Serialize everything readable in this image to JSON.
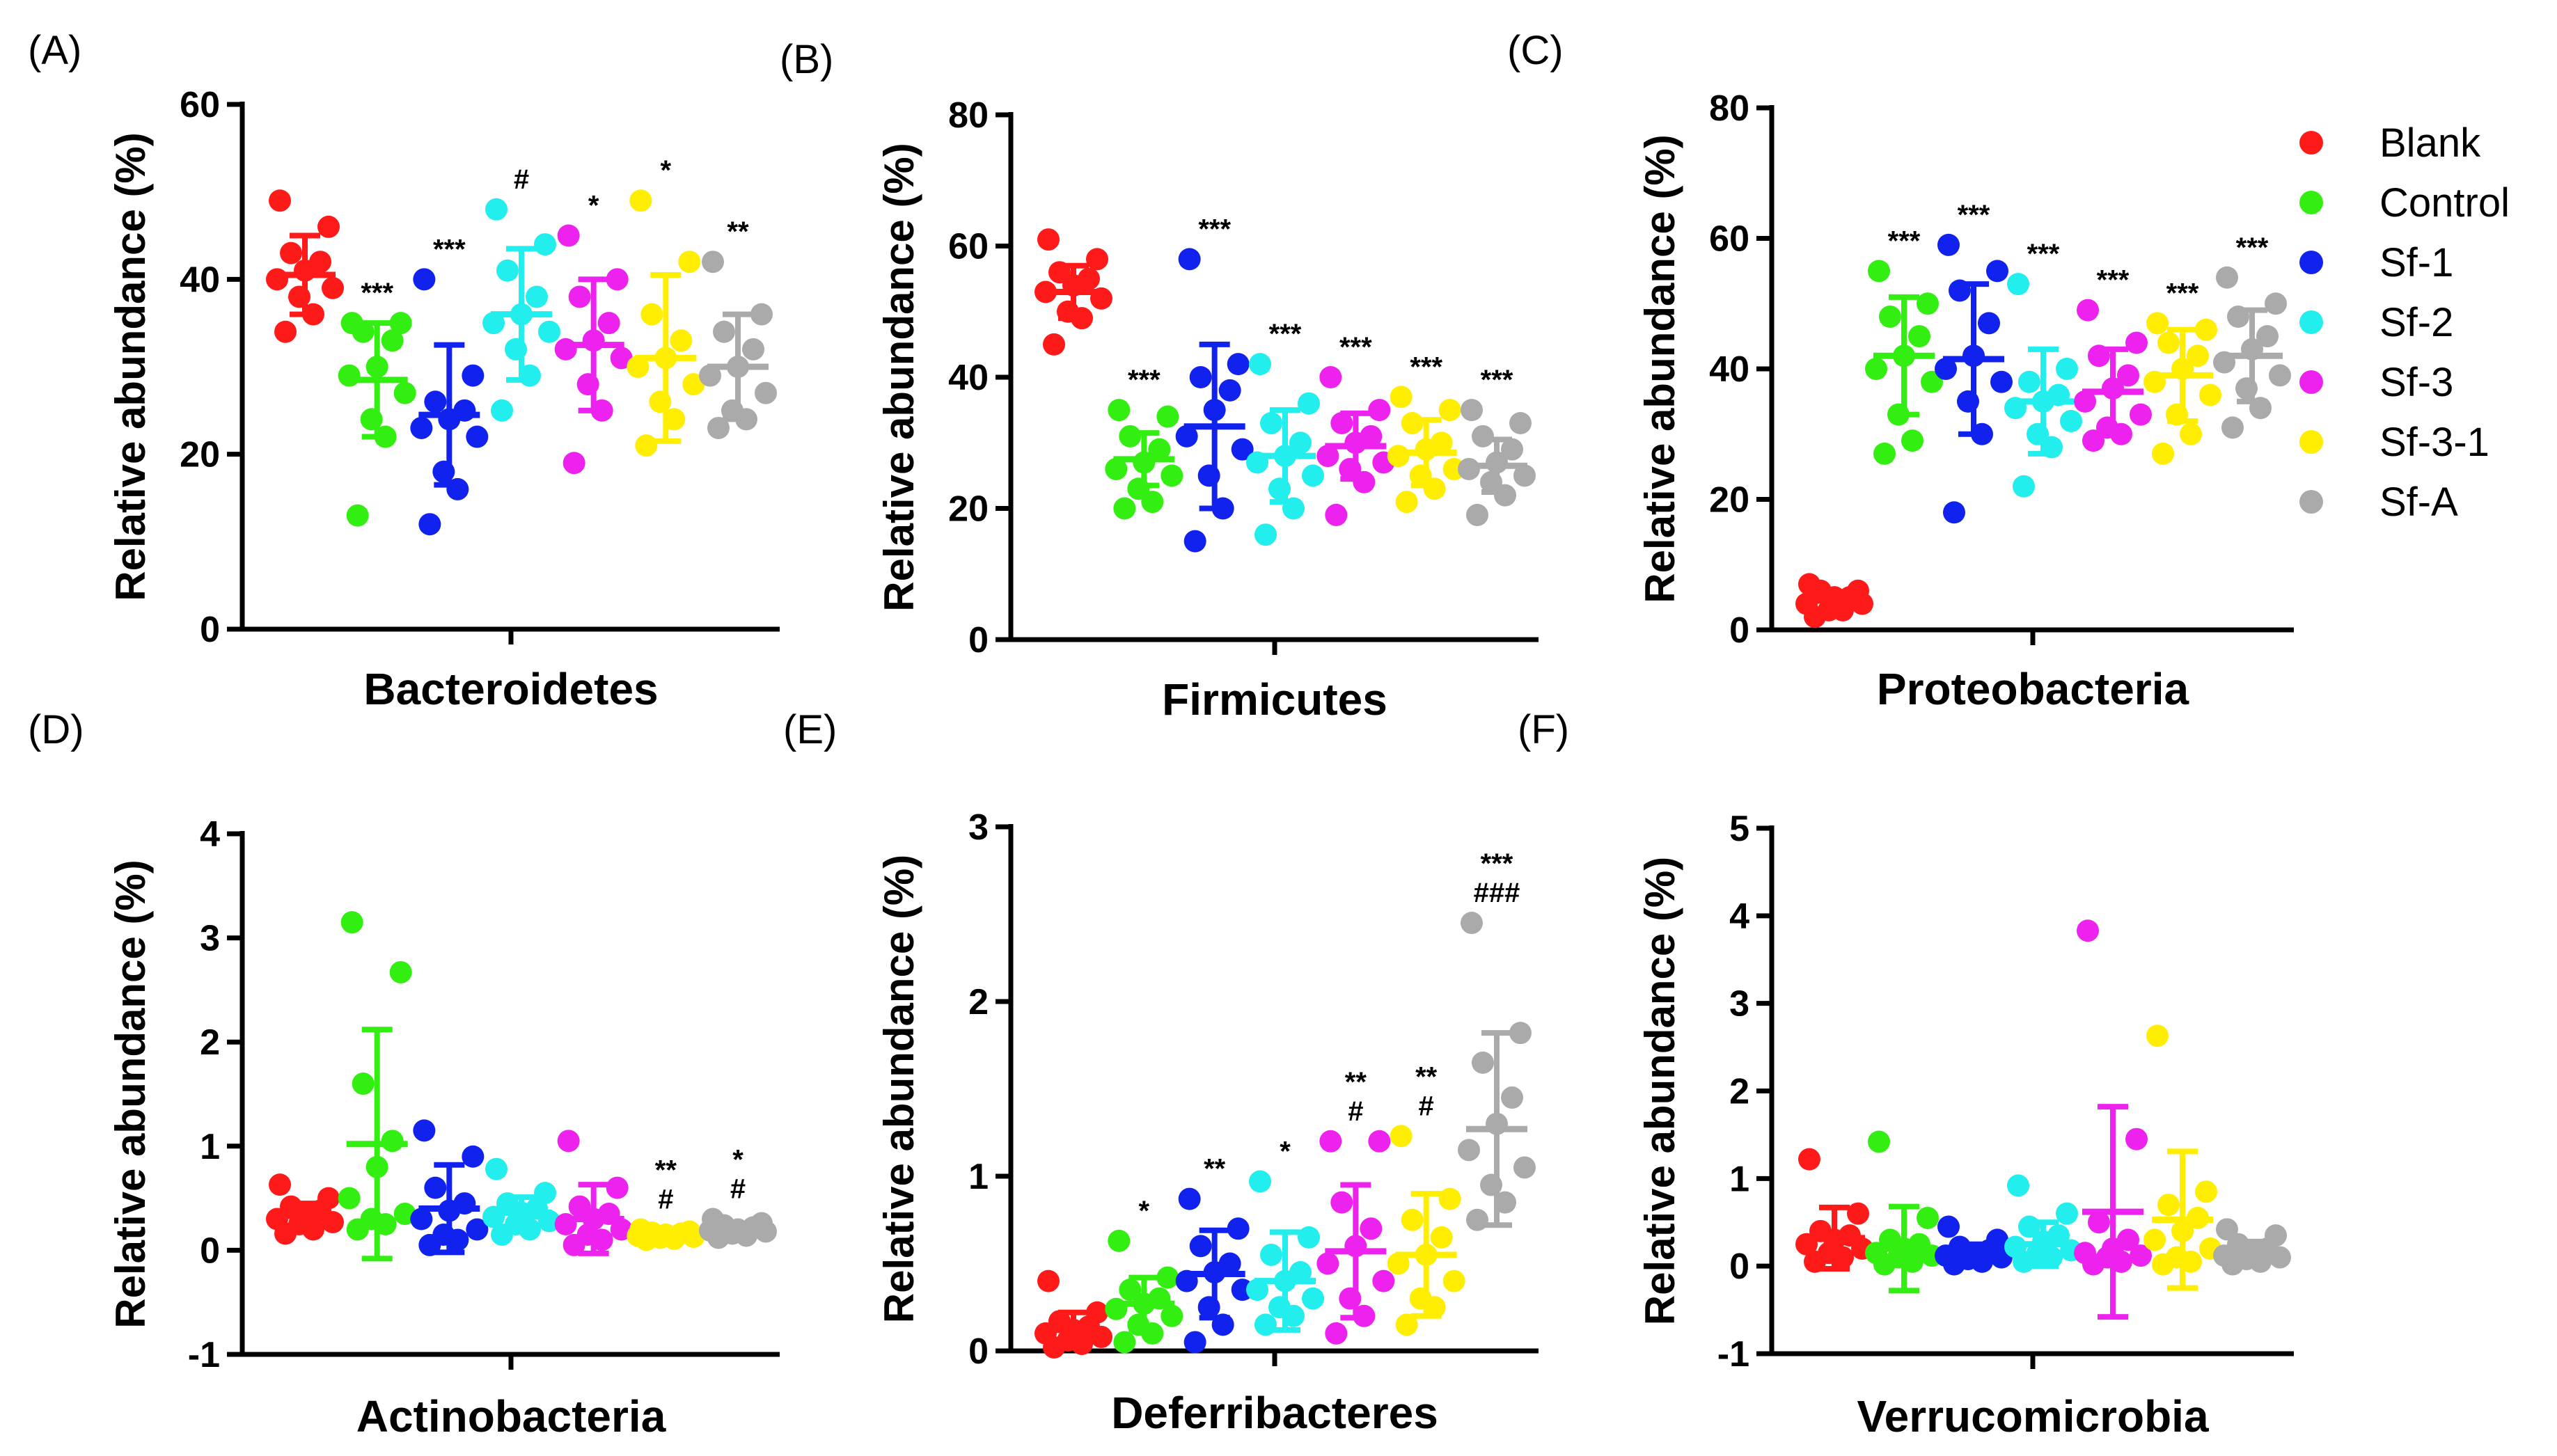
{
  "figure": {
    "legend": [
      {
        "name": "Blank",
        "color": "#ff1a1a"
      },
      {
        "name": "Control",
        "color": "#33ee11"
      },
      {
        "name": "Sf-1",
        "color": "#1122ee"
      },
      {
        "name": "Sf-2",
        "color": "#22eeee"
      },
      {
        "name": "Sf-3",
        "color": "#ee22ee"
      },
      {
        "name": "Sf-3-1",
        "color": "#ffee00"
      },
      {
        "name": "Sf-A",
        "color": "#aaaaaa"
      }
    ]
  },
  "chart_data": [
    {
      "panel": "(A)",
      "type": "scatter",
      "title": "",
      "xlabel": "Bacteroidetes",
      "ylabel": "Relative abundance (%)",
      "ylim": [
        0,
        60
      ],
      "yticks": [
        "0",
        "20",
        "40",
        "60"
      ],
      "grid": false,
      "groups": [
        "Blank",
        "Control",
        "Sf-1",
        "Sf-2",
        "Sf-3",
        "Sf-3-1",
        "Sf-A"
      ],
      "series": [
        {
          "name": "Blank",
          "mean": 40.5,
          "sd": 4.5,
          "points": [
            49,
            46,
            43,
            42,
            41,
            40,
            39,
            38,
            36,
            34
          ]
        },
        {
          "name": "Control",
          "mean": 28.5,
          "sd": 6.5,
          "points": [
            35,
            35,
            34,
            33,
            30,
            29,
            27,
            24,
            22,
            13
          ]
        },
        {
          "name": "Sf-1",
          "mean": 24.5,
          "sd": 8,
          "points": [
            40,
            29,
            26,
            25,
            24,
            23,
            22,
            18,
            16,
            12
          ]
        },
        {
          "name": "Sf-2",
          "mean": 36,
          "sd": 7.5,
          "points": [
            48,
            44,
            41,
            38,
            36,
            35,
            34,
            32,
            29,
            25
          ]
        },
        {
          "name": "Sf-3",
          "mean": 32.5,
          "sd": 7.5,
          "points": [
            45,
            40,
            38,
            35,
            33,
            32,
            31,
            28,
            25,
            19
          ]
        },
        {
          "name": "Sf-3-1",
          "mean": 31,
          "sd": 9.5,
          "points": [
            49,
            42,
            36,
            33,
            31,
            30,
            28,
            26,
            24,
            21
          ]
        },
        {
          "name": "Sf-A",
          "mean": 30,
          "sd": 6,
          "points": [
            42,
            36,
            34,
            32,
            30,
            29,
            27,
            25,
            24,
            23
          ]
        }
      ],
      "annotations": [
        [
          "***"
        ],
        [
          "***"
        ],
        [
          "#"
        ],
        [
          "*"
        ],
        [
          "*"
        ],
        [
          "**"
        ]
      ]
    },
    {
      "panel": "(B)",
      "type": "scatter",
      "title": "",
      "xlabel": "Firmicutes",
      "ylabel": "Relative abundance (%)",
      "ylim": [
        0,
        80
      ],
      "yticks": [
        "0",
        "20",
        "40",
        "60",
        "80"
      ],
      "grid": false,
      "groups": [
        "Blank",
        "Control",
        "Sf-1",
        "Sf-2",
        "Sf-3",
        "Sf-3-1",
        "Sf-A"
      ],
      "series": [
        {
          "name": "Blank",
          "mean": 53,
          "sd": 4,
          "points": [
            61,
            58,
            56,
            55,
            54,
            53,
            52,
            50,
            49,
            45
          ]
        },
        {
          "name": "Control",
          "mean": 27.5,
          "sd": 4,
          "points": [
            35,
            34,
            31,
            29,
            27,
            26,
            25,
            23,
            21,
            20
          ]
        },
        {
          "name": "Sf-1",
          "mean": 32.5,
          "sd": 12.5,
          "points": [
            58,
            42,
            40,
            38,
            35,
            31,
            29,
            25,
            20,
            15
          ]
        },
        {
          "name": "Sf-2",
          "mean": 28,
          "sd": 7,
          "points": [
            42,
            36,
            33,
            30,
            28,
            27,
            25,
            23,
            20,
            16
          ]
        },
        {
          "name": "Sf-3",
          "mean": 29.5,
          "sd": 5,
          "points": [
            40,
            35,
            33,
            31,
            30,
            28,
            27,
            26,
            24,
            19
          ]
        },
        {
          "name": "Sf-3-1",
          "mean": 28.5,
          "sd": 5,
          "points": [
            37,
            35,
            33,
            30,
            29,
            28,
            26,
            25,
            23,
            21
          ]
        },
        {
          "name": "Sf-A",
          "mean": 26.5,
          "sd": 4,
          "points": [
            35,
            33,
            31,
            29,
            27,
            26,
            25,
            24,
            22,
            19
          ]
        }
      ],
      "annotations": [
        [
          "***"
        ],
        [
          "***"
        ],
        [
          "***"
        ],
        [
          "***"
        ],
        [
          "***"
        ],
        [
          "***"
        ]
      ]
    },
    {
      "panel": "(C)",
      "type": "scatter",
      "title": "",
      "xlabel": "Proteobacteria",
      "ylabel": "Relative abundance (%)",
      "ylim": [
        0,
        80
      ],
      "yticks": [
        "0",
        "20",
        "40",
        "60",
        "80"
      ],
      "grid": false,
      "groups": [
        "Blank",
        "Control",
        "Sf-1",
        "Sf-2",
        "Sf-3",
        "Sf-3-1",
        "Sf-A"
      ],
      "series": [
        {
          "name": "Blank",
          "mean": 4.5,
          "sd": 1.2,
          "points": [
            7,
            6,
            6,
            5,
            5,
            4,
            4,
            3,
            3,
            2
          ]
        },
        {
          "name": "Control",
          "mean": 42,
          "sd": 9,
          "points": [
            55,
            50,
            48,
            45,
            42,
            40,
            38,
            33,
            29,
            27
          ]
        },
        {
          "name": "Sf-1",
          "mean": 41.5,
          "sd": 11.5,
          "points": [
            59,
            55,
            52,
            47,
            42,
            40,
            38,
            35,
            30,
            18
          ]
        },
        {
          "name": "Sf-2",
          "mean": 35,
          "sd": 8,
          "points": [
            53,
            40,
            38,
            36,
            35,
            34,
            32,
            30,
            28,
            22
          ]
        },
        {
          "name": "Sf-3",
          "mean": 36.5,
          "sd": 6.5,
          "points": [
            49,
            44,
            42,
            39,
            37,
            35,
            33,
            31,
            30,
            29
          ]
        },
        {
          "name": "Sf-3-1",
          "mean": 39,
          "sd": 7,
          "points": [
            47,
            46,
            44,
            42,
            40,
            38,
            36,
            33,
            30,
            27
          ]
        },
        {
          "name": "Sf-A",
          "mean": 42,
          "sd": 7,
          "points": [
            54,
            50,
            48,
            45,
            43,
            41,
            39,
            37,
            34,
            31
          ]
        }
      ],
      "annotations": [
        [
          "***"
        ],
        [
          "***"
        ],
        [
          "***"
        ],
        [
          "***"
        ],
        [
          "***"
        ],
        [
          "***"
        ]
      ]
    },
    {
      "panel": "(D)",
      "type": "scatter",
      "title": "",
      "xlabel": "Actinobacteria",
      "ylabel": "Relative abundance (%)",
      "ylim": [
        -1,
        4
      ],
      "yticks": [
        "-1",
        "0",
        "1",
        "2",
        "3",
        "4"
      ],
      "grid": false,
      "groups": [
        "Blank",
        "Control",
        "Sf-1",
        "Sf-2",
        "Sf-3",
        "Sf-3-1",
        "Sf-A"
      ],
      "series": [
        {
          "name": "Blank",
          "mean": 0.33,
          "sd": 0.12,
          "points": [
            0.63,
            0.5,
            0.42,
            0.38,
            0.33,
            0.3,
            0.27,
            0.25,
            0.2,
            0.16
          ]
        },
        {
          "name": "Control",
          "mean": 1.02,
          "sd": 1.1,
          "points": [
            3.15,
            2.67,
            1.6,
            1.05,
            0.8,
            0.5,
            0.35,
            0.3,
            0.25,
            0.2
          ]
        },
        {
          "name": "Sf-1",
          "mean": 0.4,
          "sd": 0.42,
          "points": [
            1.15,
            0.9,
            0.6,
            0.45,
            0.38,
            0.3,
            0.2,
            0.15,
            0.1,
            0.05
          ]
        },
        {
          "name": "Sf-2",
          "mean": 0.36,
          "sd": 0.15,
          "points": [
            0.78,
            0.55,
            0.45,
            0.4,
            0.36,
            0.32,
            0.28,
            0.25,
            0.2,
            0.15
          ]
        },
        {
          "name": "Sf-3",
          "mean": 0.3,
          "sd": 0.33,
          "points": [
            1.05,
            0.6,
            0.42,
            0.35,
            0.3,
            0.25,
            0.2,
            0.15,
            0.1,
            0.05
          ]
        },
        {
          "name": "Sf-3-1",
          "mean": 0.15,
          "sd": 0.04,
          "points": [
            0.2,
            0.18,
            0.17,
            0.16,
            0.15,
            0.14,
            0.13,
            0.12,
            0.11,
            0.1
          ]
        },
        {
          "name": "Sf-A",
          "mean": 0.2,
          "sd": 0.05,
          "points": [
            0.3,
            0.26,
            0.24,
            0.22,
            0.2,
            0.19,
            0.18,
            0.16,
            0.14,
            0.12
          ]
        }
      ],
      "annotations": [
        [],
        [],
        [],
        [],
        [
          "**",
          "#"
        ],
        [
          "*",
          "#"
        ]
      ]
    },
    {
      "panel": "(E)",
      "type": "scatter",
      "title": "",
      "xlabel": "Deferribacteres",
      "ylabel": "Relative abundance (%)",
      "ylim": [
        0,
        3
      ],
      "yticks": [
        "0",
        "1",
        "2",
        "3"
      ],
      "grid": false,
      "groups": [
        "Blank",
        "Control",
        "Sf-1",
        "Sf-2",
        "Sf-3",
        "Sf-3-1",
        "Sf-A"
      ],
      "series": [
        {
          "name": "Blank",
          "mean": 0.12,
          "sd": 0.1,
          "points": [
            0.4,
            0.22,
            0.17,
            0.14,
            0.12,
            0.1,
            0.08,
            0.06,
            0.04,
            0.02
          ]
        },
        {
          "name": "Control",
          "mean": 0.27,
          "sd": 0.15,
          "points": [
            0.63,
            0.42,
            0.35,
            0.3,
            0.27,
            0.24,
            0.2,
            0.15,
            0.1,
            0.05
          ]
        },
        {
          "name": "Sf-1",
          "mean": 0.44,
          "sd": 0.25,
          "points": [
            0.87,
            0.7,
            0.6,
            0.5,
            0.45,
            0.4,
            0.35,
            0.25,
            0.15,
            0.05
          ]
        },
        {
          "name": "Sf-2",
          "mean": 0.4,
          "sd": 0.28,
          "points": [
            0.97,
            0.65,
            0.55,
            0.45,
            0.4,
            0.35,
            0.3,
            0.25,
            0.2,
            0.15
          ]
        },
        {
          "name": "Sf-3",
          "mean": 0.57,
          "sd": 0.38,
          "points": [
            1.2,
            1.2,
            0.85,
            0.7,
            0.6,
            0.5,
            0.4,
            0.3,
            0.2,
            0.1
          ]
        },
        {
          "name": "Sf-3-1",
          "mean": 0.55,
          "sd": 0.35,
          "points": [
            1.23,
            0.87,
            0.75,
            0.65,
            0.55,
            0.5,
            0.4,
            0.3,
            0.25,
            0.15
          ]
        },
        {
          "name": "Sf-A",
          "mean": 1.27,
          "sd": 0.55,
          "points": [
            2.45,
            1.82,
            1.65,
            1.45,
            1.3,
            1.15,
            1.05,
            0.95,
            0.85,
            0.75
          ]
        }
      ],
      "annotations": [
        [
          "*"
        ],
        [
          "**"
        ],
        [
          "*"
        ],
        [
          "**",
          "#"
        ],
        [
          "**",
          "#"
        ],
        [
          "***",
          "###"
        ]
      ]
    },
    {
      "panel": "(F)",
      "type": "scatter",
      "title": "",
      "xlabel": "Verrucomicrobia",
      "ylabel": "Relative abundance (%)",
      "ylim": [
        -1,
        5
      ],
      "yticks": [
        "-1",
        "0",
        "1",
        "2",
        "3",
        "4",
        "5"
      ],
      "grid": false,
      "groups": [
        "Blank",
        "Control",
        "Sf-1",
        "Sf-2",
        "Sf-3",
        "Sf-3-1",
        "Sf-A"
      ],
      "series": [
        {
          "name": "Blank",
          "mean": 0.32,
          "sd": 0.35,
          "points": [
            1.22,
            0.6,
            0.4,
            0.35,
            0.3,
            0.25,
            0.2,
            0.15,
            0.1,
            0.05
          ]
        },
        {
          "name": "Control",
          "mean": 0.2,
          "sd": 0.48,
          "points": [
            1.42,
            0.55,
            0.3,
            0.25,
            0.2,
            0.15,
            0.12,
            0.1,
            0.05,
            0.02
          ]
        },
        {
          "name": "Sf-1",
          "mean": 0.15,
          "sd": 0.1,
          "points": [
            0.45,
            0.3,
            0.22,
            0.18,
            0.15,
            0.12,
            0.1,
            0.08,
            0.05,
            0.02
          ]
        },
        {
          "name": "Sf-2",
          "mean": 0.25,
          "sd": 0.25,
          "points": [
            0.92,
            0.6,
            0.45,
            0.35,
            0.28,
            0.22,
            0.18,
            0.15,
            0.1,
            0.05
          ]
        },
        {
          "name": "Sf-3",
          "mean": 0.62,
          "sd": 1.2,
          "points": [
            3.83,
            1.45,
            0.5,
            0.3,
            0.2,
            0.15,
            0.12,
            0.1,
            0.05,
            0.02
          ]
        },
        {
          "name": "Sf-3-1",
          "mean": 0.53,
          "sd": 0.78,
          "points": [
            2.63,
            0.85,
            0.7,
            0.55,
            0.4,
            0.3,
            0.2,
            0.1,
            0.05,
            0.02
          ]
        },
        {
          "name": "Sf-A",
          "mean": 0.15,
          "sd": 0.13,
          "points": [
            0.42,
            0.35,
            0.25,
            0.2,
            0.15,
            0.12,
            0.1,
            0.08,
            0.05,
            0.02
          ]
        }
      ],
      "annotations": [
        [],
        [],
        [],
        [],
        [],
        []
      ]
    }
  ]
}
